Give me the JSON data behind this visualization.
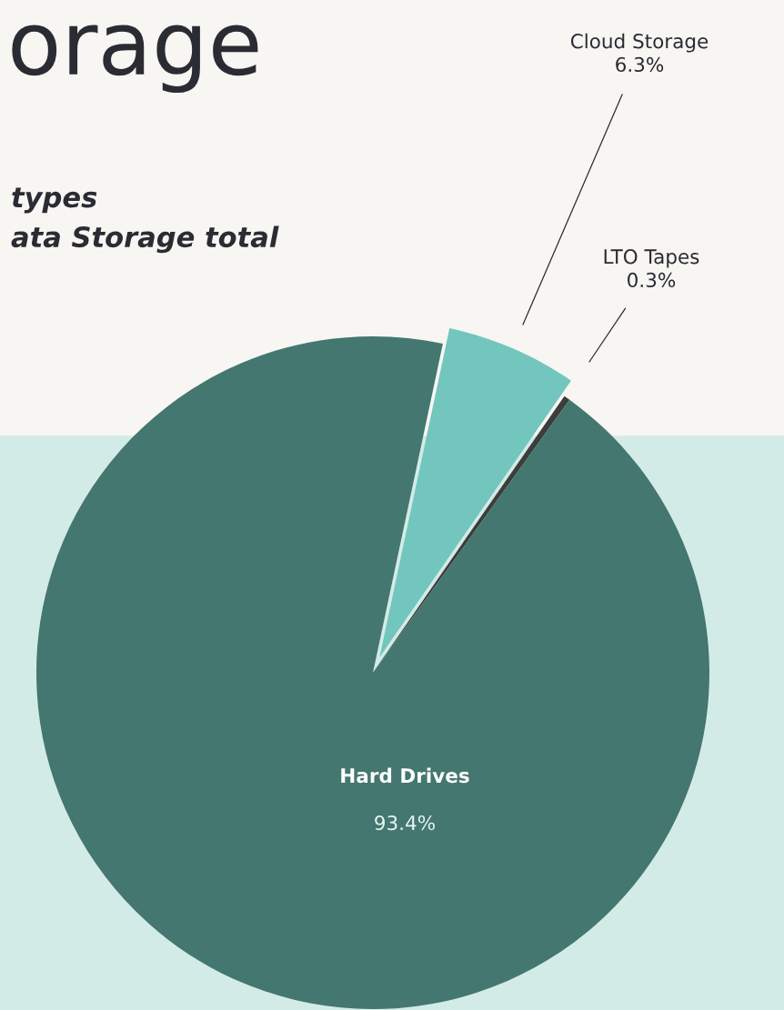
{
  "chart_data": {
    "type": "pie",
    "title": "orage",
    "subtitle": "types\nata Storage total",
    "categories": [
      "Cloud Storage",
      "LTO Tapes",
      "Hard Drives"
    ],
    "values": [
      6.3,
      0.3,
      93.4
    ],
    "value_labels": [
      "6.3%",
      "0.3%",
      "93.4%"
    ],
    "colors": [
      "#72c6bd",
      "#3d3d3d",
      "#437770"
    ]
  }
}
